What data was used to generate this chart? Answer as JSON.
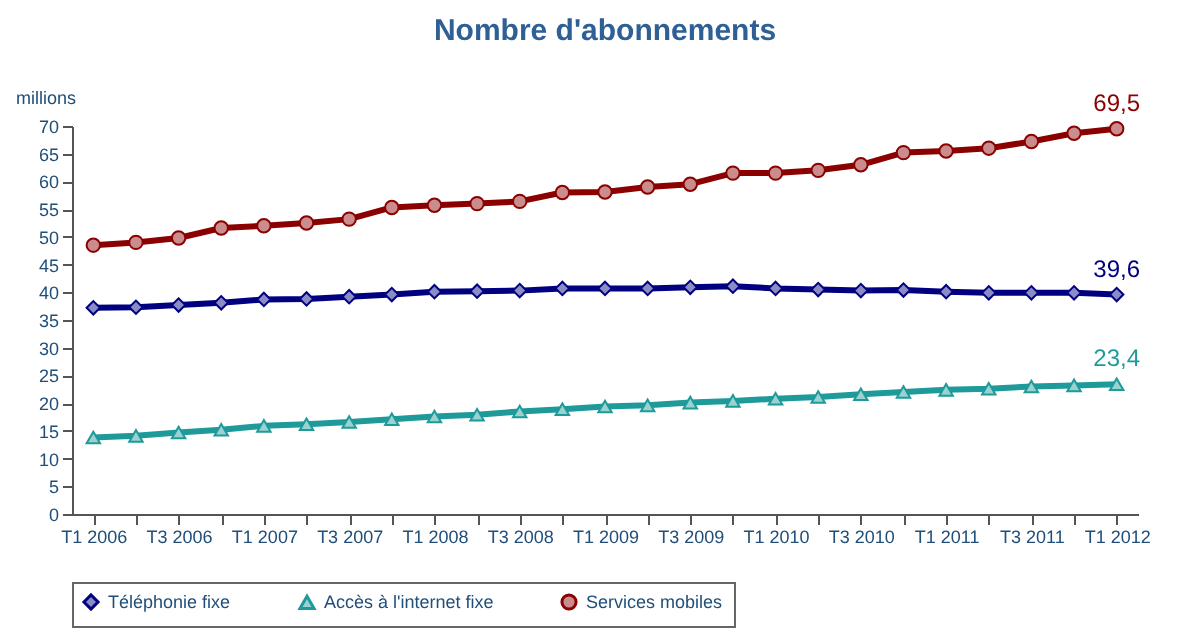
{
  "chart_data": {
    "type": "line",
    "title": "Nombre d'abonnements",
    "ylabel": "millions",
    "categories": [
      "T1 2006",
      null,
      "T3 2006",
      null,
      "T1 2007",
      null,
      "T3 2007",
      null,
      "T1 2008",
      null,
      "T3 2008",
      null,
      "T1 2009",
      null,
      "T3 2009",
      null,
      "T1 2010",
      null,
      "T3 2010",
      null,
      "T1 2011",
      null,
      "T3 2011",
      null,
      "T1 2012"
    ],
    "series": [
      {
        "name": "Téléphonie fixe",
        "color": "#000080",
        "marker": "diamond",
        "values": [
          37.2,
          37.3,
          37.7,
          38.1,
          38.7,
          38.8,
          39.2,
          39.6,
          40.1,
          40.2,
          40.3,
          40.7,
          40.7,
          40.7,
          40.9,
          41.1,
          40.7,
          40.5,
          40.3,
          40.4,
          40.1,
          39.9,
          39.9,
          39.9,
          39.6
        ],
        "value_labels": [
          null,
          null,
          null,
          null,
          null,
          null,
          null,
          null,
          null,
          null,
          null,
          null,
          null,
          null,
          null,
          null,
          null,
          null,
          null,
          null,
          null,
          null,
          null,
          null,
          "39,6"
        ]
      },
      {
        "name": "Accès à l'internet fixe",
        "color": "#1f9a9a",
        "marker": "triangle",
        "values": [
          13.8,
          14.1,
          14.7,
          15.2,
          15.9,
          16.2,
          16.6,
          17.1,
          17.6,
          17.9,
          18.5,
          18.9,
          19.4,
          19.6,
          20.1,
          20.4,
          20.8,
          21.1,
          21.6,
          22.0,
          22.4,
          22.6,
          23.0,
          23.2,
          23.4
        ],
        "value_labels": [
          null,
          null,
          null,
          null,
          null,
          null,
          null,
          null,
          null,
          null,
          null,
          null,
          null,
          null,
          null,
          null,
          null,
          null,
          null,
          null,
          null,
          null,
          null,
          null,
          "23,4"
        ]
      },
      {
        "name": "Services mobiles",
        "color": "#8b0000",
        "marker": "circle",
        "values": [
          48.5,
          49.0,
          49.8,
          51.6,
          52.0,
          52.5,
          53.2,
          55.3,
          55.7,
          56.0,
          56.4,
          58.0,
          58.1,
          59.0,
          59.5,
          61.5,
          61.5,
          62.0,
          63.0,
          65.2,
          65.5,
          66.0,
          67.2,
          68.7,
          69.5
        ],
        "value_labels": [
          null,
          null,
          null,
          null,
          null,
          null,
          null,
          null,
          null,
          null,
          null,
          null,
          null,
          null,
          null,
          null,
          null,
          null,
          null,
          null,
          null,
          null,
          null,
          null,
          "69,5"
        ]
      }
    ],
    "ylim": [
      0,
      70
    ],
    "yticks": [
      0,
      5,
      10,
      15,
      20,
      25,
      30,
      35,
      40,
      45,
      50,
      55,
      60,
      65,
      70
    ],
    "grid": false,
    "legend": "bottom"
  }
}
